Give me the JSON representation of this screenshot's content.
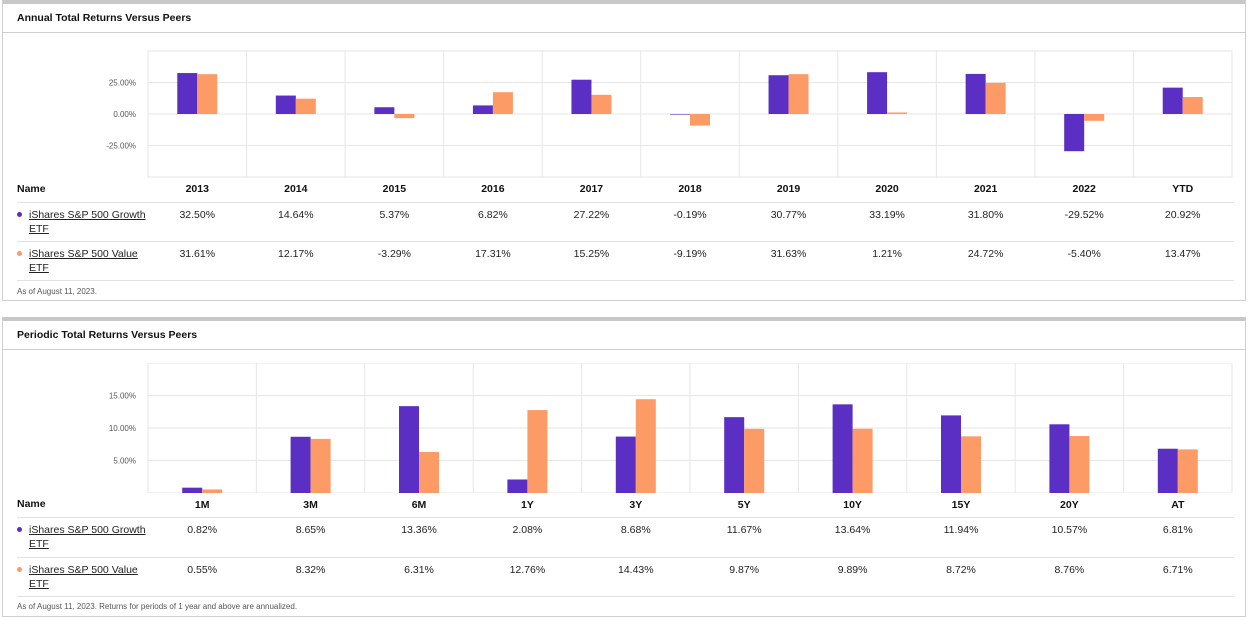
{
  "colors": {
    "growth": "#5b2fc4",
    "value": "#fd9b66",
    "grid": "#e6e6e6",
    "tick": "#555555"
  },
  "annual": {
    "title": "Annual Total Returns Versus Peers",
    "name_header": "Name",
    "funds": [
      {
        "name_line1": "iShares S&P 500 Growth",
        "name_line2": "ETF",
        "values": [
          "32.50%",
          "14.64%",
          "5.37%",
          "6.82%",
          "27.22%",
          "-0.19%",
          "30.77%",
          "33.19%",
          "31.80%",
          "-29.52%",
          "20.92%"
        ]
      },
      {
        "name_line1": "iShares S&P 500 Value",
        "name_line2": "ETF",
        "values": [
          "31.61%",
          "12.17%",
          "-3.29%",
          "17.31%",
          "15.25%",
          "-9.19%",
          "31.63%",
          "1.21%",
          "24.72%",
          "-5.40%",
          "13.47%"
        ]
      }
    ],
    "footnote": "As of August 11, 2023."
  },
  "periodic": {
    "title": "Periodic Total Returns Versus Peers",
    "name_header": "Name",
    "funds": [
      {
        "name_line1": "iShares S&P 500 Growth",
        "name_line2": "ETF",
        "values": [
          "0.82%",
          "8.65%",
          "13.36%",
          "2.08%",
          "8.68%",
          "11.67%",
          "13.64%",
          "11.94%",
          "10.57%",
          "6.81%"
        ]
      },
      {
        "name_line1": "iShares S&P 500 Value",
        "name_line2": "ETF",
        "values": [
          "0.55%",
          "8.32%",
          "6.31%",
          "12.76%",
          "14.43%",
          "9.87%",
          "9.89%",
          "8.72%",
          "8.76%",
          "6.71%"
        ]
      }
    ],
    "footnote": "As of August 11, 2023. Returns for periods of 1 year and above are annualized."
  },
  "chart_data": [
    {
      "type": "bar",
      "title": "Annual Total Returns Versus Peers",
      "categories": [
        "2013",
        "2014",
        "2015",
        "2016",
        "2017",
        "2018",
        "2019",
        "2020",
        "2021",
        "2022",
        "YTD"
      ],
      "series": [
        {
          "name": "iShares S&P 500 Growth ETF",
          "values": [
            32.5,
            14.64,
            5.37,
            6.82,
            27.22,
            -0.19,
            30.77,
            33.19,
            31.8,
            -29.52,
            20.92
          ]
        },
        {
          "name": "iShares S&P 500 Value ETF",
          "values": [
            31.61,
            12.17,
            -3.29,
            17.31,
            15.25,
            -9.19,
            31.63,
            1.21,
            24.72,
            -5.4,
            13.47
          ]
        }
      ],
      "yticks": [
        "25.00%",
        "0.00%",
        "-25.00%"
      ],
      "ytick_values": [
        25,
        0,
        -25
      ],
      "ylim": [
        -50,
        50
      ],
      "grid": true,
      "legend": "none"
    },
    {
      "type": "bar",
      "title": "Periodic Total Returns Versus Peers",
      "categories": [
        "1M",
        "3M",
        "6M",
        "1Y",
        "3Y",
        "5Y",
        "10Y",
        "15Y",
        "20Y",
        "AT"
      ],
      "series": [
        {
          "name": "iShares S&P 500 Growth ETF",
          "values": [
            0.82,
            8.65,
            13.36,
            2.08,
            8.68,
            11.67,
            13.64,
            11.94,
            10.57,
            6.81
          ]
        },
        {
          "name": "iShares S&P 500 Value ETF",
          "values": [
            0.55,
            8.32,
            6.31,
            12.76,
            14.43,
            9.87,
            9.89,
            8.72,
            8.76,
            6.71
          ]
        }
      ],
      "yticks": [
        "15.00%",
        "10.00%",
        "5.00%"
      ],
      "ytick_values": [
        15,
        10,
        5
      ],
      "ylim": [
        0,
        20
      ],
      "grid": true,
      "legend": "none"
    }
  ]
}
